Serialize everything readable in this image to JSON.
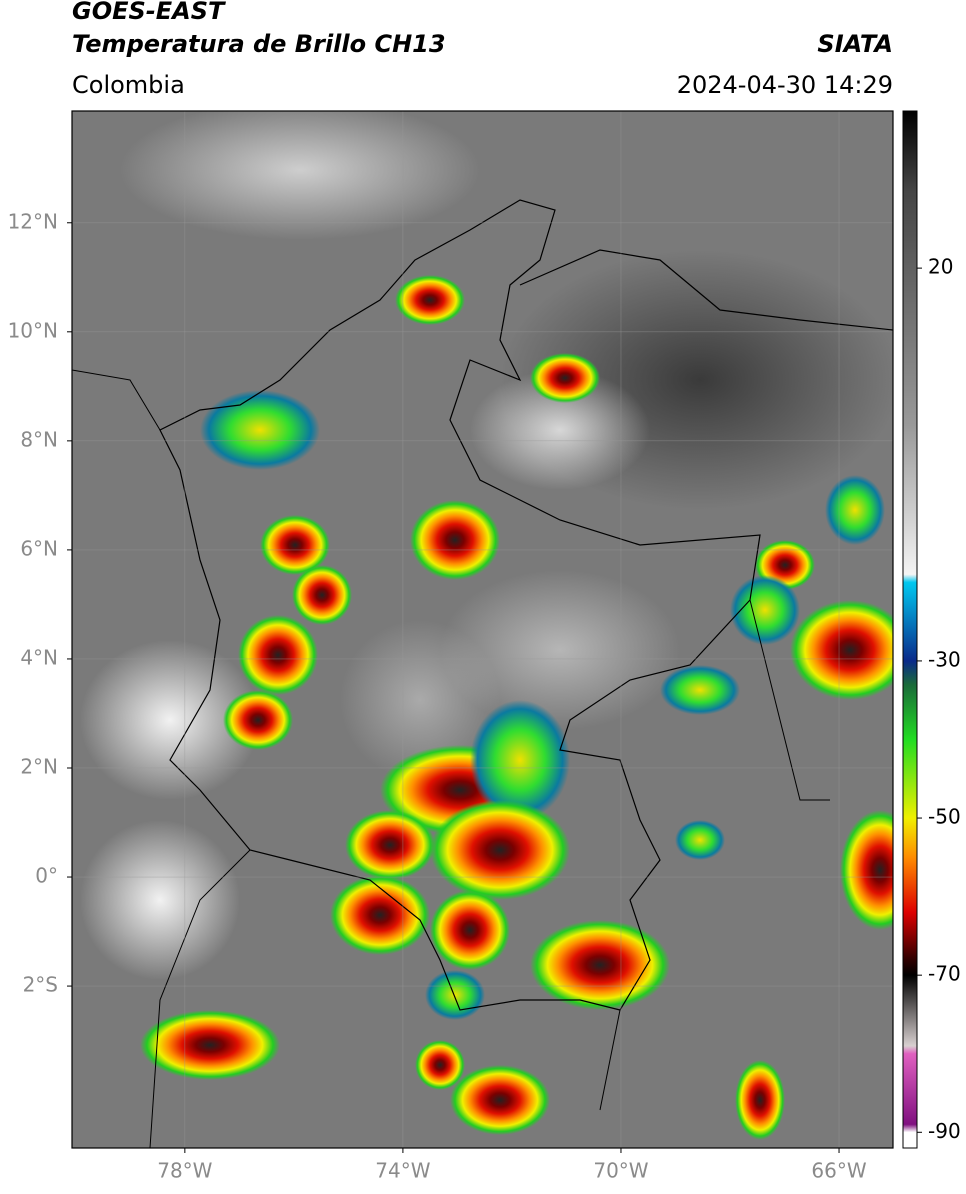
{
  "header": {
    "satellite": "GOES-EAST",
    "product": "Temperatura de Brillo CH13",
    "source": "SIATA",
    "region": "Colombia",
    "datetime": "2024-04-30 14:29"
  },
  "map": {
    "lon_range": [
      -80.07,
      -65.01
    ],
    "lat_range": [
      -4.97,
      14.05
    ],
    "lon_ticks": [
      {
        "value": -78,
        "label": "78°W"
      },
      {
        "value": -74,
        "label": "74°W"
      },
      {
        "value": -70,
        "label": "70°W"
      },
      {
        "value": -66,
        "label": "66°W"
      }
    ],
    "lat_ticks": [
      {
        "value": 12,
        "label": "12°N"
      },
      {
        "value": 10,
        "label": "10°N"
      },
      {
        "value": 8,
        "label": "8°N"
      },
      {
        "value": 6,
        "label": "6°N"
      },
      {
        "value": 4,
        "label": "4°N"
      },
      {
        "value": 2,
        "label": "2°N"
      },
      {
        "value": 0,
        "label": "0°"
      },
      {
        "value": -2,
        "label": "2°S"
      }
    ]
  },
  "colorbar": {
    "range": [
      -92,
      40
    ],
    "ticks": [
      20,
      -30,
      -50,
      -70,
      -90
    ],
    "colormap": [
      {
        "value": 40,
        "color": "#000000"
      },
      {
        "value": 30,
        "color": "#444444"
      },
      {
        "value": 0,
        "color": "#999999"
      },
      {
        "value": -19,
        "color": "#f4f4f4"
      },
      {
        "value": -20,
        "color": "#00c8f0"
      },
      {
        "value": -30,
        "color": "#0a2a8a"
      },
      {
        "value": -33,
        "color": "#1a6a3a"
      },
      {
        "value": -40,
        "color": "#22dd22"
      },
      {
        "value": -50,
        "color": "#f0f000"
      },
      {
        "value": -55,
        "color": "#ff8c00"
      },
      {
        "value": -62,
        "color": "#dd0000"
      },
      {
        "value": -68,
        "color": "#300000"
      },
      {
        "value": -70,
        "color": "#000000"
      },
      {
        "value": -79,
        "color": "#d8d0d0"
      },
      {
        "value": -80,
        "color": "#e060c0"
      },
      {
        "value": -89,
        "color": "#801080"
      },
      {
        "value": -90,
        "color": "#ffffff"
      }
    ]
  }
}
